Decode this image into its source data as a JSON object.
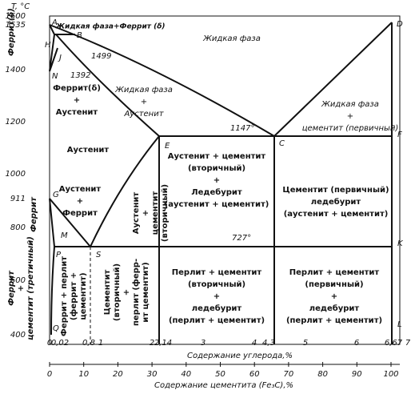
{
  "axes": {
    "y_title": "T, °C",
    "y_ticks": [
      "1600",
      "1535",
      "1400",
      "1200",
      "1000",
      "911",
      "800",
      "600",
      "400"
    ],
    "x_ticks": [
      "0",
      "0,02",
      "0,8",
      "1",
      "2",
      "2,14",
      "3",
      "4",
      "4,3",
      "5",
      "6",
      "6,67",
      "7"
    ],
    "x_label": "Содержание углерода,%",
    "x2_ticks": [
      "0",
      "10",
      "20",
      "30",
      "40",
      "50",
      "60",
      "70",
      "80",
      "90",
      "100"
    ],
    "x2_label": "Содержание цементита (Fe₃C),%"
  },
  "points": {
    "A": "A",
    "B": "B",
    "D": "D",
    "H": "H",
    "J": "J",
    "N": "N",
    "E": "E",
    "C": "C",
    "F": "F",
    "G": "G",
    "M": "M",
    "P": "P",
    "S": "S",
    "K": "K",
    "L": "L",
    "Q": "Q",
    "t1499": "1499",
    "t1392": "1392",
    "t1147": "1147°",
    "t727": "727°"
  },
  "regions": {
    "liquid_ferrite": "Жидкая фаза+Феррит (δ)",
    "liquid": "Жидкая фаза",
    "ferrite_delta": "Феррит(δ)",
    "ferrite_delta_austenite": [
      "Феррит(δ)",
      "+",
      "Аустенит"
    ],
    "liquid_austenite": [
      "Жидкая фаза",
      "+",
      "Аустенит"
    ],
    "liquid_cementite": [
      "Жидкая фаза",
      "+",
      "цементит (первичный)"
    ],
    "austenite": "Аустенит",
    "austenite_ferrite": [
      "Аустенит",
      "+",
      "Феррит"
    ],
    "ferrite": "Феррит",
    "ferrite_cementite_tertiary": [
      "Феррит",
      "+",
      "цементит (третичный)"
    ],
    "austenite_cementite_secondary": [
      "Аустенит",
      "+",
      "цементит",
      "(вторичный)"
    ],
    "austenite_cementite_ledeburite": [
      "Аустенит + цементит",
      "(вторичный)",
      "+",
      "Ледебурит",
      "(аустенит + цементит)"
    ],
    "cementite_ledeburite": [
      "Цементит (первичный)",
      "ледебурит",
      "(аустенит + цементит)"
    ],
    "ferrite_pearlite": [
      "Феррит + перлит",
      "(феррит +",
      "цементит)"
    ],
    "cementite_pearlite": [
      "Цементит",
      "(вторичный)",
      "+",
      "перлит (ферр-",
      "ит цементит)"
    ],
    "pearlite_ledeburite_secondary": [
      "Перлит + цементит",
      "(вторичный)",
      "+",
      "ледебурит",
      "(перлит + цементит)"
    ],
    "pearlite_ledeburite_primary": [
      "Перлит + цементит",
      "(первичный)",
      "+",
      "ледебурит",
      "(перлит + цементит)"
    ]
  }
}
